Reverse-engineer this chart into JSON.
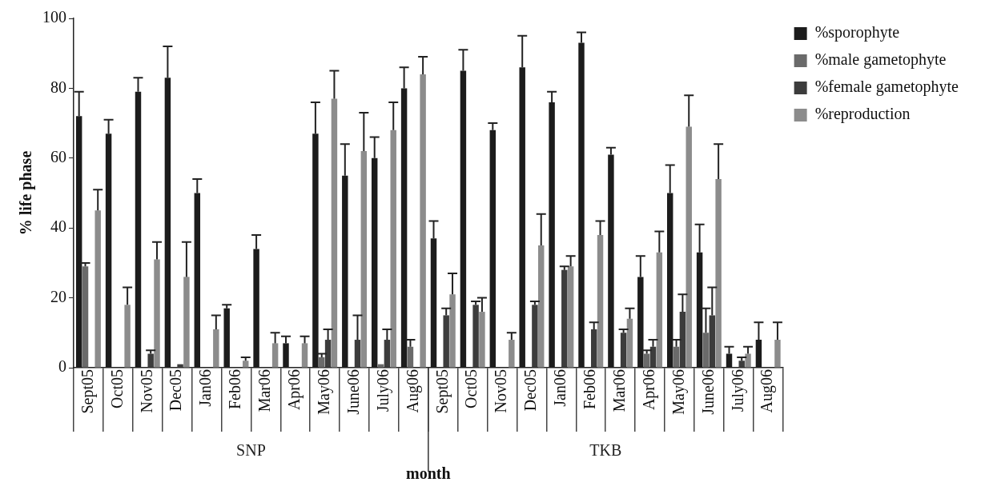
{
  "chart_data": {
    "type": "bar",
    "xlabel": "month",
    "ylabel": "% life phase",
    "categories": [
      "Sept05",
      "Oct05",
      "Nov05",
      "Dec05",
      "Jan06",
      "Feb06",
      "Mar06",
      "Apr06",
      "May06",
      "June06",
      "July06",
      "Aug06",
      "Sept05",
      "Oct05",
      "Nov05",
      "Dec05",
      "Jan06",
      "Feb06",
      "Mar06",
      "Apr06",
      "May06",
      "June06",
      "July06",
      "Aug06"
    ],
    "series": [
      {
        "name": "%sporophyte",
        "color": "#1c1c1c",
        "values": [
          72,
          67,
          79,
          83,
          50,
          17,
          34,
          7,
          67,
          55,
          60,
          80,
          37,
          85,
          68,
          86,
          76,
          93,
          61,
          26,
          50,
          33,
          4,
          8
        ],
        "errors": [
          [
            72,
            79
          ],
          [
            67,
            71
          ],
          [
            79,
            83
          ],
          [
            83,
            92
          ],
          [
            50,
            54
          ],
          [
            17,
            18
          ],
          [
            34,
            38
          ],
          [
            7,
            9
          ],
          [
            67,
            76
          ],
          [
            55,
            64
          ],
          [
            60,
            66
          ],
          [
            80,
            86
          ],
          [
            37,
            42
          ],
          [
            85,
            91
          ],
          [
            68,
            70
          ],
          [
            86,
            95
          ],
          [
            76,
            79
          ],
          [
            93,
            96
          ],
          [
            61,
            63
          ],
          [
            26,
            32
          ],
          [
            50,
            58
          ],
          [
            33,
            41
          ],
          [
            4,
            6
          ],
          [
            8,
            13
          ]
        ]
      },
      {
        "name": "%male gametophyte",
        "color": "#6a6a6a",
        "values": [
          29,
          0,
          0,
          0,
          0,
          0,
          0,
          0,
          3,
          0,
          1,
          6,
          0,
          0,
          0,
          0,
          0,
          0,
          0,
          4,
          6,
          10,
          0,
          0
        ],
        "errors": [
          [
            29,
            30
          ],
          null,
          null,
          null,
          null,
          null,
          null,
          null,
          [
            3,
            4
          ],
          null,
          null,
          [
            6,
            8
          ],
          null,
          null,
          null,
          null,
          null,
          null,
          null,
          [
            4,
            5
          ],
          [
            6,
            8
          ],
          [
            10,
            17
          ],
          null,
          null
        ]
      },
      {
        "name": "%female gametophyte",
        "color": "#3c3c3c",
        "values": [
          0,
          0,
          4,
          1,
          0,
          0,
          0,
          0,
          8,
          8,
          8,
          0,
          15,
          18,
          0,
          18,
          28,
          11,
          10,
          6,
          16,
          15,
          2,
          0
        ],
        "errors": [
          null,
          null,
          [
            4,
            5
          ],
          null,
          null,
          null,
          null,
          null,
          [
            8,
            11
          ],
          [
            8,
            15
          ],
          [
            8,
            11
          ],
          null,
          [
            15,
            17
          ],
          [
            18,
            19
          ],
          null,
          [
            18,
            19
          ],
          [
            28,
            29
          ],
          [
            11,
            13
          ],
          [
            10,
            11
          ],
          [
            6,
            8
          ],
          [
            16,
            21
          ],
          [
            15,
            23
          ],
          [
            2,
            3
          ],
          null
        ]
      },
      {
        "name": "%reproduction",
        "color": "#8c8c8c",
        "values": [
          45,
          18,
          31,
          26,
          11,
          2,
          7,
          7,
          77,
          62,
          68,
          84,
          21,
          16,
          8,
          35,
          29,
          38,
          14,
          33,
          69,
          54,
          4,
          8
        ],
        "errors": [
          [
            45,
            51
          ],
          [
            18,
            23
          ],
          [
            31,
            36
          ],
          [
            26,
            36
          ],
          [
            11,
            15
          ],
          [
            2,
            3
          ],
          [
            7,
            10
          ],
          [
            7,
            9
          ],
          [
            77,
            85
          ],
          [
            62,
            73
          ],
          [
            68,
            76
          ],
          [
            84,
            89
          ],
          [
            21,
            27
          ],
          [
            16,
            20
          ],
          [
            8,
            10
          ],
          [
            35,
            44
          ],
          [
            29,
            32
          ],
          [
            38,
            42
          ],
          [
            14,
            17
          ],
          [
            33,
            39
          ],
          [
            69,
            78
          ],
          [
            54,
            64
          ],
          [
            4,
            6
          ],
          [
            8,
            13
          ]
        ]
      }
    ],
    "ylim": [
      0,
      100
    ],
    "yticks": [
      0,
      20,
      40,
      60,
      80,
      100
    ],
    "grid": false,
    "legend": "top right",
    "annotations": [
      "SNP",
      "TKB"
    ]
  }
}
